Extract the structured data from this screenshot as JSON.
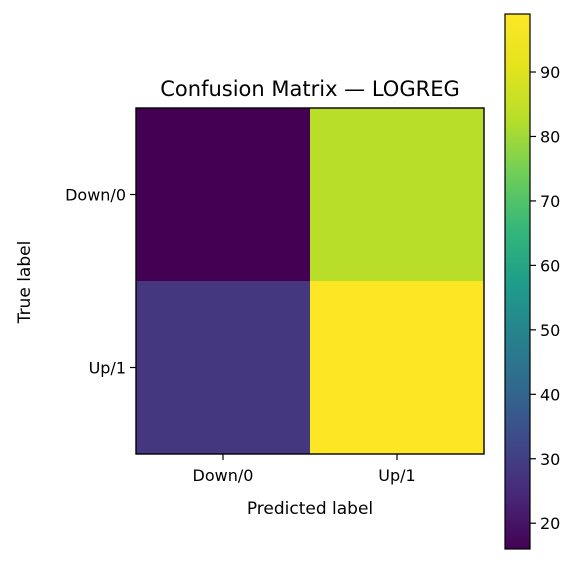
{
  "chart_data": {
    "type": "heatmap",
    "title": "Confusion Matrix — LOGREG",
    "xlabel": "Predicted label",
    "ylabel": "True label",
    "x_categories": [
      "Down/0",
      "Up/1"
    ],
    "y_categories": [
      "Down/0",
      "Up/1"
    ],
    "values": [
      [
        16,
        83
      ],
      [
        28,
        99
      ]
    ],
    "colorbar": {
      "range": [
        16,
        99
      ],
      "ticks": [
        20,
        30,
        40,
        50,
        60,
        70,
        80,
        90
      ],
      "colormap": "viridis"
    }
  }
}
